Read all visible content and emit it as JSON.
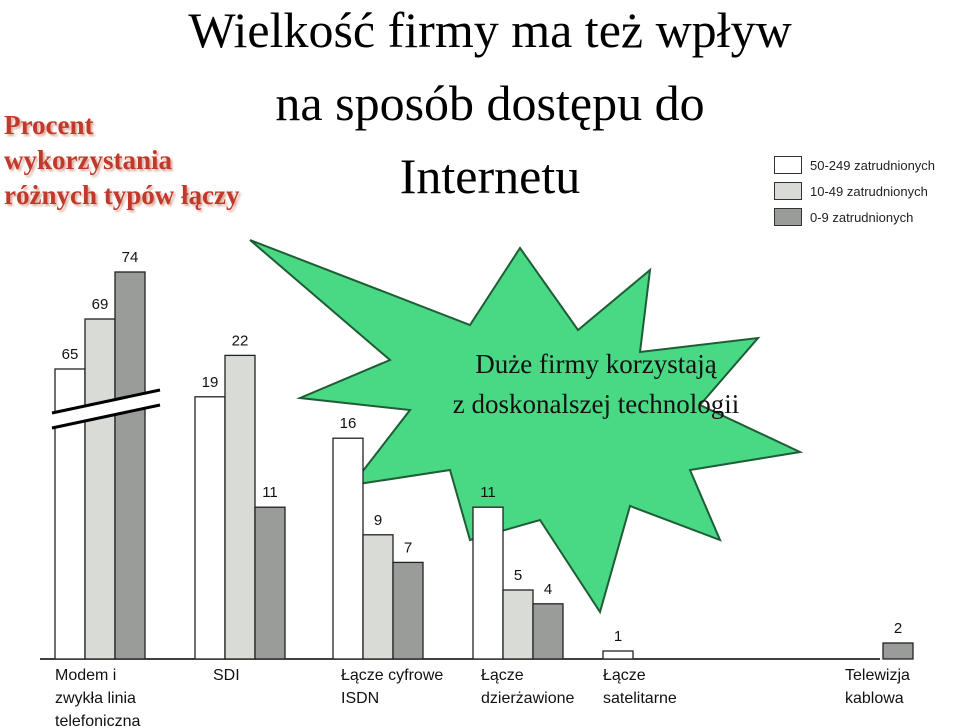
{
  "title_lines": [
    "Wielkość firmy ma też wpływ",
    "na sposób dostępu do",
    "Internetu"
  ],
  "side_label_lines": [
    "Procent",
    "wykorzystania",
    "różnych typów łączy"
  ],
  "callout_lines": [
    "Duże firmy korzystają",
    "z doskonalszej technologii"
  ],
  "colors": {
    "series_large": "#ffffff",
    "series_medium": "#d9dcd6",
    "series_small": "#9a9c99",
    "callout_fill": "#49d883",
    "side_label": "#c0392b"
  },
  "chart_data": {
    "type": "bar",
    "categories": [
      [
        "Modem i",
        "zwykła linia",
        "telefoniczna"
      ],
      [
        "SDI"
      ],
      [
        "Łącze cyfrowe",
        "ISDN"
      ],
      [
        "Łącze",
        "dzierżawione"
      ],
      [
        "Łącze",
        "satelitarne"
      ],
      [
        "Telewizja",
        "kablowa"
      ]
    ],
    "series": [
      {
        "name": "50-249 zatrudnionych",
        "values": [
          65,
          19,
          16,
          11,
          1,
          null
        ]
      },
      {
        "name": "10-49 zatrudnionych",
        "values": [
          69,
          22,
          9,
          5,
          null,
          null
        ]
      },
      {
        "name": "0-9 zatrudnionych",
        "values": [
          74,
          11,
          7,
          4,
          null,
          2
        ]
      }
    ],
    "axis_break": true,
    "legend_position": "top-right"
  }
}
